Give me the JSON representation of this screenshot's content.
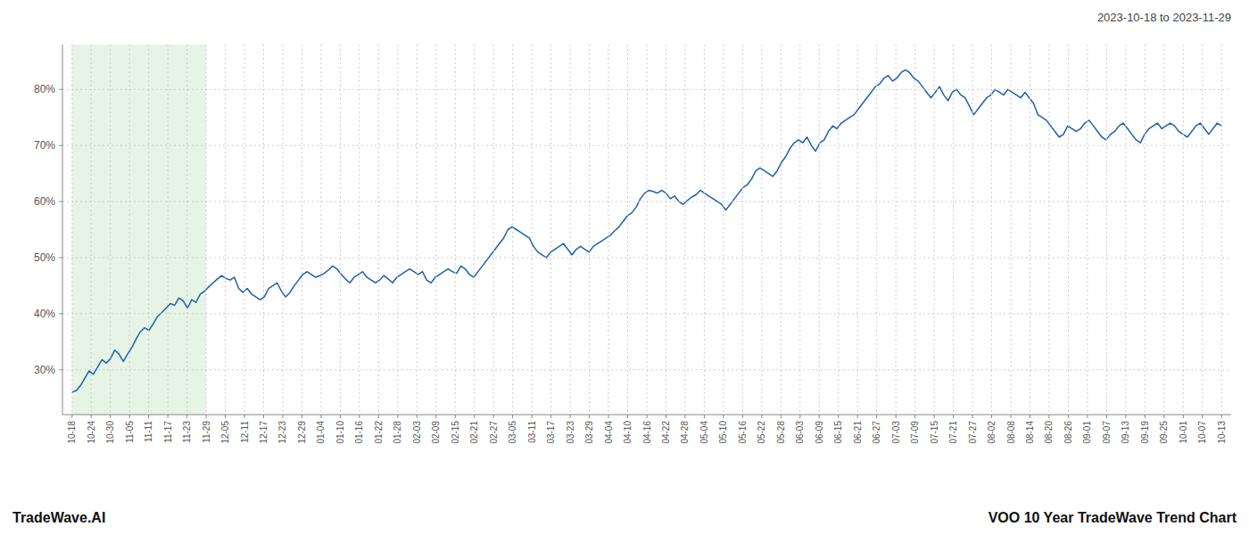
{
  "chart_data": {
    "type": "line",
    "title": "VOO 10 Year TradeWave Trend Chart",
    "subtitle": "2023-10-18 to 2023-11-29",
    "annotations": [
      "TradeWave.AI"
    ],
    "color": "#2060a8",
    "grid": true,
    "highlight_start": "10-18",
    "highlight_end": "11-29",
    "highlight_color": "#d6ecd6",
    "ylim": [
      22,
      88
    ],
    "yticks": [
      {
        "value": 30,
        "label": "30%"
      },
      {
        "value": 40,
        "label": "40%"
      },
      {
        "value": 50,
        "label": "50%"
      },
      {
        "value": 60,
        "label": "60%"
      },
      {
        "value": 70,
        "label": "70%"
      },
      {
        "value": 80,
        "label": "80%"
      }
    ],
    "xlim": [
      -0.5,
      60.5
    ],
    "xticks": [
      {
        "value": 0,
        "label": "10-18"
      },
      {
        "value": 1,
        "label": "10-24"
      },
      {
        "value": 2,
        "label": "10-30"
      },
      {
        "value": 3,
        "label": "11-05"
      },
      {
        "value": 4,
        "label": "11-11"
      },
      {
        "value": 5,
        "label": "11-17"
      },
      {
        "value": 6,
        "label": "11-23"
      },
      {
        "value": 7,
        "label": "11-29"
      },
      {
        "value": 8,
        "label": "12-05"
      },
      {
        "value": 9,
        "label": "12-11"
      },
      {
        "value": 10,
        "label": "12-17"
      },
      {
        "value": 11,
        "label": "12-23"
      },
      {
        "value": 12,
        "label": "12-29"
      },
      {
        "value": 13,
        "label": "01-04"
      },
      {
        "value": 14,
        "label": "01-10"
      },
      {
        "value": 15,
        "label": "01-16"
      },
      {
        "value": 16,
        "label": "01-22"
      },
      {
        "value": 17,
        "label": "01-28"
      },
      {
        "value": 18,
        "label": "02-03"
      },
      {
        "value": 19,
        "label": "02-09"
      },
      {
        "value": 20,
        "label": "02-15"
      },
      {
        "value": 21,
        "label": "02-21"
      },
      {
        "value": 22,
        "label": "02-27"
      },
      {
        "value": 23,
        "label": "03-05"
      },
      {
        "value": 24,
        "label": "03-11"
      },
      {
        "value": 25,
        "label": "03-17"
      },
      {
        "value": 26,
        "label": "03-23"
      },
      {
        "value": 27,
        "label": "03-29"
      },
      {
        "value": 28,
        "label": "04-04"
      },
      {
        "value": 29,
        "label": "04-10"
      },
      {
        "value": 30,
        "label": "04-16"
      },
      {
        "value": 31,
        "label": "04-22"
      },
      {
        "value": 32,
        "label": "04-28"
      },
      {
        "value": 33,
        "label": "05-04"
      },
      {
        "value": 34,
        "label": "05-10"
      },
      {
        "value": 35,
        "label": "05-16"
      },
      {
        "value": 36,
        "label": "05-22"
      },
      {
        "value": 37,
        "label": "05-28"
      },
      {
        "value": 38,
        "label": "06-03"
      },
      {
        "value": 39,
        "label": "06-09"
      },
      {
        "value": 40,
        "label": "06-15"
      },
      {
        "value": 41,
        "label": "06-21"
      },
      {
        "value": 42,
        "label": "06-27"
      },
      {
        "value": 43,
        "label": "07-03"
      },
      {
        "value": 44,
        "label": "07-09"
      },
      {
        "value": 45,
        "label": "07-15"
      },
      {
        "value": 46,
        "label": "07-21"
      },
      {
        "value": 47,
        "label": "07-27"
      },
      {
        "value": 48,
        "label": "08-02"
      },
      {
        "value": 49,
        "label": "08-08"
      },
      {
        "value": 50,
        "label": "08-14"
      },
      {
        "value": 51,
        "label": "08-20"
      },
      {
        "value": 52,
        "label": "08-26"
      },
      {
        "value": 53,
        "label": "09-01"
      },
      {
        "value": 54,
        "label": "09-07"
      },
      {
        "value": 55,
        "label": "09-13"
      },
      {
        "value": 56,
        "label": "09-19"
      },
      {
        "value": 57,
        "label": "09-25"
      },
      {
        "value": 58,
        "label": "10-01"
      },
      {
        "value": 59,
        "label": "10-07"
      },
      {
        "value": 60,
        "label": "10-13"
      }
    ],
    "values": [
      26.0,
      26.3,
      27.2,
      28.5,
      29.8,
      29.2,
      30.5,
      31.8,
      31.2,
      32.0,
      33.5,
      32.8,
      31.5,
      32.8,
      34.0,
      35.5,
      36.8,
      37.5,
      37.0,
      38.2,
      39.5,
      40.2,
      41.0,
      41.8,
      41.5,
      42.8,
      42.3,
      41.0,
      42.5,
      42.0,
      43.5,
      44.0,
      44.8,
      45.5,
      46.2,
      46.8,
      46.3,
      46.0,
      46.5,
      44.5,
      43.8,
      44.5,
      43.5,
      43.0,
      42.5,
      43.0,
      44.5,
      45.0,
      45.5,
      44.0,
      43.0,
      43.8,
      45.0,
      46.0,
      47.0,
      47.5,
      47.0,
      46.5,
      46.8,
      47.2,
      47.8,
      48.5,
      48.0,
      47.0,
      46.2,
      45.5,
      46.5,
      47.0,
      47.5,
      46.5,
      46.0,
      45.5,
      46.0,
      46.8,
      46.2,
      45.5,
      46.5,
      47.0,
      47.5,
      48.0,
      47.5,
      47.0,
      47.5,
      46.0,
      45.5,
      46.5,
      47.0,
      47.5,
      48.0,
      47.5,
      47.2,
      48.5,
      48.0,
      47.0,
      46.5,
      47.5,
      48.5,
      49.5,
      50.5,
      51.5,
      52.5,
      53.5,
      55.0,
      55.5,
      55.0,
      54.5,
      54.0,
      53.5,
      52.0,
      51.0,
      50.5,
      50.0,
      51.0,
      51.5,
      52.0,
      52.5,
      51.5,
      50.5,
      51.5,
      52.0,
      51.5,
      51.0,
      52.0,
      52.5,
      53.0,
      53.5,
      54.0,
      54.8,
      55.5,
      56.5,
      57.5,
      58.0,
      59.0,
      60.5,
      61.5,
      62.0,
      61.8,
      61.5,
      62.0,
      61.5,
      60.5,
      61.0,
      60.0,
      59.5,
      60.2,
      60.8,
      61.2,
      62.0,
      61.5,
      61.0,
      60.5,
      60.0,
      59.5,
      58.5,
      59.5,
      60.5,
      61.5,
      62.5,
      63.0,
      64.0,
      65.5,
      66.0,
      65.5,
      65.0,
      64.5,
      65.5,
      67.0,
      68.0,
      69.5,
      70.5,
      71.0,
      70.5,
      71.5,
      70.0,
      69.0,
      70.5,
      71.0,
      72.5,
      73.5,
      73.0,
      74.0,
      74.5,
      75.0,
      75.5,
      76.5,
      77.5,
      78.5,
      79.5,
      80.5,
      81.0,
      82.0,
      82.5,
      81.5,
      82.0,
      83.0,
      83.5,
      83.0,
      82.0,
      81.5,
      80.5,
      79.5,
      78.5,
      79.5,
      80.5,
      79.0,
      78.0,
      79.5,
      80.0,
      79.0,
      78.5,
      77.0,
      75.5,
      76.5,
      77.5,
      78.5,
      79.0,
      80.0,
      79.5,
      79.0,
      80.0,
      79.5,
      79.0,
      78.5,
      79.5,
      78.5,
      77.5,
      75.5,
      75.0,
      74.5,
      73.5,
      72.5,
      71.5,
      72.0,
      73.5,
      73.0,
      72.5,
      73.0,
      74.0,
      74.5,
      73.5,
      72.5,
      71.5,
      71.0,
      72.0,
      72.5,
      73.5,
      74.0,
      73.0,
      72.0,
      71.0,
      70.5,
      72.0,
      73.0,
      73.5,
      74.0,
      73.0,
      73.5,
      74.0,
      73.5,
      72.5,
      72.0,
      71.5,
      72.5,
      73.5,
      74.0,
      73.0,
      72.0,
      73.0,
      74.0,
      73.5
    ]
  }
}
